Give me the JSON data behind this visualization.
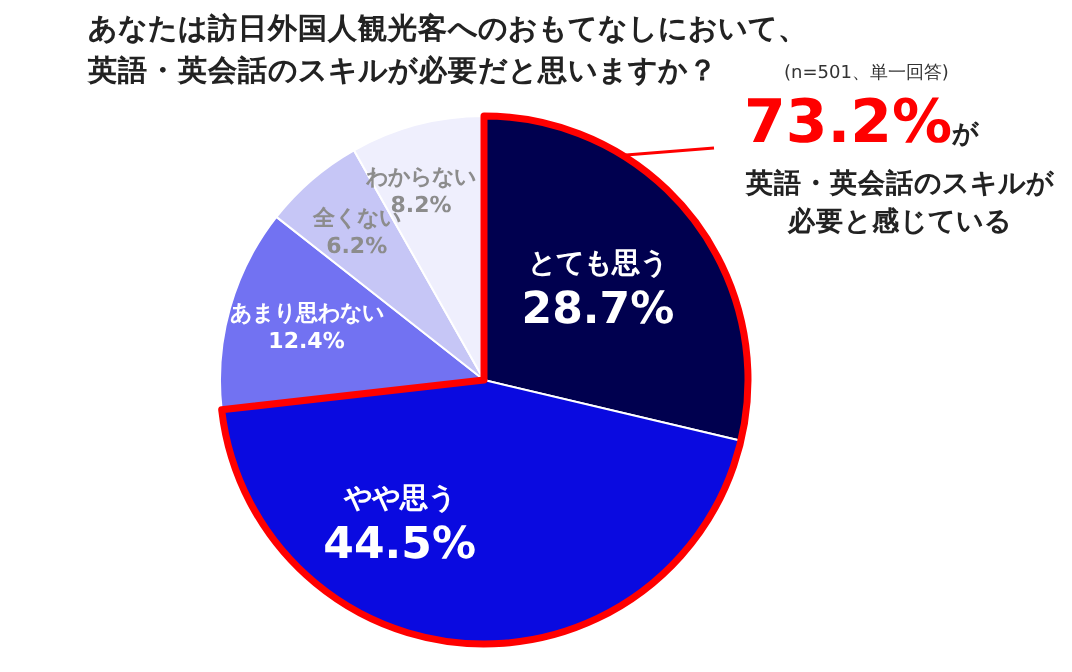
{
  "chart_data": {
    "type": "pie",
    "title": "あなたは訪日外国人観光客へのおもてなしにおいて、英語・英会話のスキルが必要だと思いますか？",
    "categories": [
      "とても思う",
      "やや思う",
      "あまり思わない",
      "全くない",
      "わからない"
    ],
    "values": [
      28.7,
      44.5,
      12.4,
      6.2,
      8.2
    ],
    "value_labels": [
      "28.7%",
      "44.5%",
      "12.4%",
      "6.2%",
      "8.2%"
    ],
    "colors": [
      "#00004f",
      "#0a0ae0",
      "#7272f2",
      "#c6c6f6",
      "#efeffd"
    ],
    "annotations": [
      "(n=501、単一回答)",
      "73.2%",
      "が",
      "英語・英会話のスキルが必要と感じている"
    ],
    "legend": false
  }
}
